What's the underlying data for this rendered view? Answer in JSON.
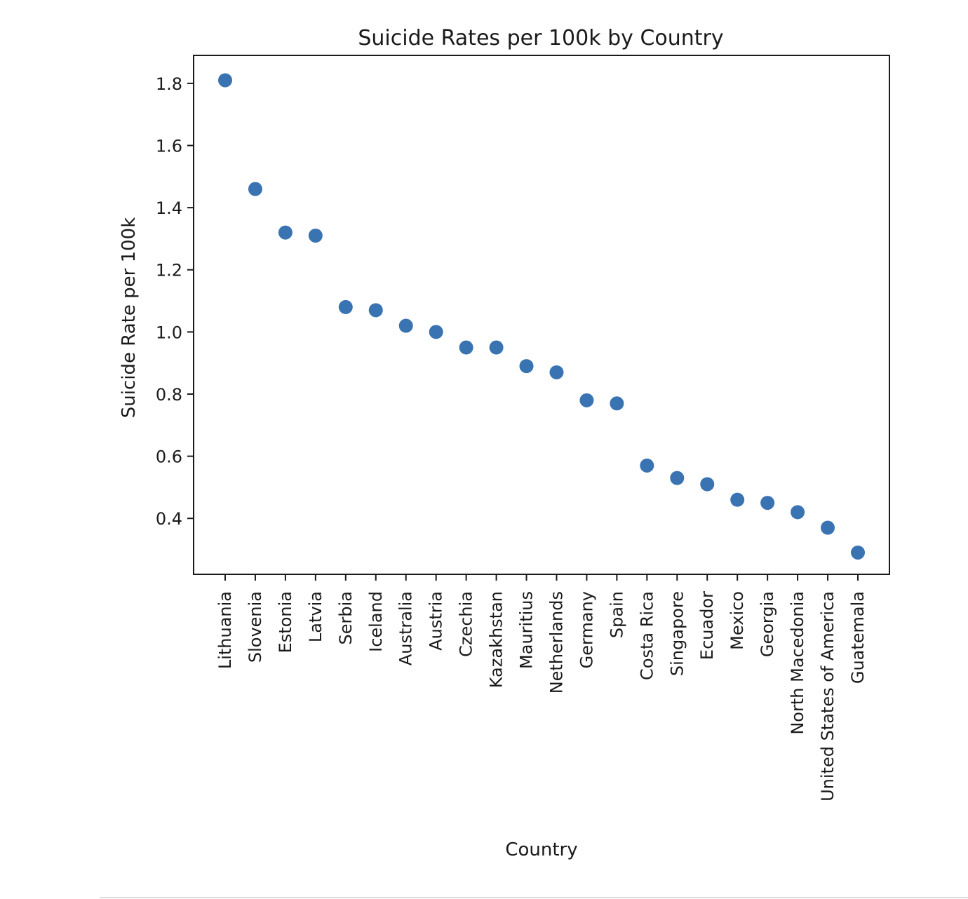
{
  "chart_data": {
    "type": "scatter",
    "title": "Suicide Rates per 100k by Country",
    "xlabel": "Country",
    "ylabel": "Suicide Rate per 100k",
    "categories": [
      "Lithuania",
      "Slovenia",
      "Estonia",
      "Latvia",
      "Serbia",
      "Iceland",
      "Australia",
      "Austria",
      "Czechia",
      "Kazakhstan",
      "Mauritius",
      "Netherlands",
      "Germany",
      "Spain",
      "Costa Rica",
      "Singapore",
      "Ecuador",
      "Mexico",
      "Georgia",
      "North Macedonia",
      "United States of America",
      "Guatemala"
    ],
    "values": [
      1.81,
      1.46,
      1.32,
      1.31,
      1.08,
      1.07,
      1.02,
      1.0,
      0.95,
      0.95,
      0.89,
      0.87,
      0.78,
      0.77,
      0.57,
      0.53,
      0.51,
      0.46,
      0.45,
      0.42,
      0.37,
      0.29
    ],
    "ylim": [
      0.22,
      1.89
    ],
    "yticks": [
      0.4,
      0.6,
      0.8,
      1.0,
      1.2,
      1.4,
      1.6,
      1.8
    ],
    "grid": false,
    "marker_color": "#3a73b2"
  }
}
